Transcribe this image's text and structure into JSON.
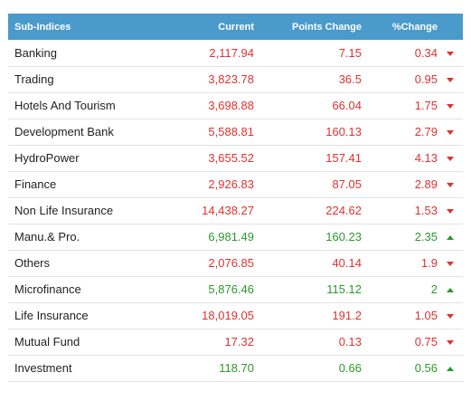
{
  "table": {
    "headers": {
      "name": "Sub-Indices",
      "current": "Current",
      "points_change": "Points Change",
      "pct_change": "%Change"
    },
    "colors": {
      "header_bg": "#4a9acc",
      "negative": "#e0322f",
      "positive": "#2a9a2a"
    },
    "rows": [
      {
        "name": "Banking",
        "current": "2,117.94",
        "points": "7.15",
        "pct": "0.34",
        "trend": "down",
        "trend_icon": "triangle-down-icon"
      },
      {
        "name": "Trading",
        "current": "3,823.78",
        "points": "36.5",
        "pct": "0.95",
        "trend": "down",
        "trend_icon": "triangle-down-icon"
      },
      {
        "name": "Hotels And Tourism",
        "current": "3,698.88",
        "points": "66.04",
        "pct": "1.75",
        "trend": "down",
        "trend_icon": "triangle-down-icon"
      },
      {
        "name": "Development Bank",
        "current": "5,588.81",
        "points": "160.13",
        "pct": "2.79",
        "trend": "down",
        "trend_icon": "triangle-down-icon"
      },
      {
        "name": "HydroPower",
        "current": "3,655.52",
        "points": "157.41",
        "pct": "4.13",
        "trend": "down",
        "trend_icon": "triangle-down-icon"
      },
      {
        "name": "Finance",
        "current": "2,926.83",
        "points": "87.05",
        "pct": "2.89",
        "trend": "down",
        "trend_icon": "triangle-down-icon"
      },
      {
        "name": "Non Life Insurance",
        "current": "14,438.27",
        "points": "224.62",
        "pct": "1.53",
        "trend": "down",
        "trend_icon": "triangle-down-icon"
      },
      {
        "name": "Manu.& Pro.",
        "current": "6,981.49",
        "points": "160.23",
        "pct": "2.35",
        "trend": "up",
        "trend_icon": "triangle-up-icon"
      },
      {
        "name": "Others",
        "current": "2,076.85",
        "points": "40.14",
        "pct": "1.9",
        "trend": "down",
        "trend_icon": "triangle-down-icon"
      },
      {
        "name": "Microfinance",
        "current": "5,876.46",
        "points": "115.12",
        "pct": "2",
        "trend": "up",
        "trend_icon": "triangle-up-icon"
      },
      {
        "name": "Life Insurance",
        "current": "18,019.05",
        "points": "191.2",
        "pct": "1.05",
        "trend": "down",
        "trend_icon": "triangle-down-icon"
      },
      {
        "name": "Mutual Fund",
        "current": "17.32",
        "points": "0.13",
        "pct": "0.75",
        "trend": "down",
        "trend_icon": "triangle-down-icon"
      },
      {
        "name": "Investment",
        "current": "118.70",
        "points": "0.66",
        "pct": "0.56",
        "trend": "up",
        "trend_icon": "triangle-up-icon"
      }
    ]
  }
}
